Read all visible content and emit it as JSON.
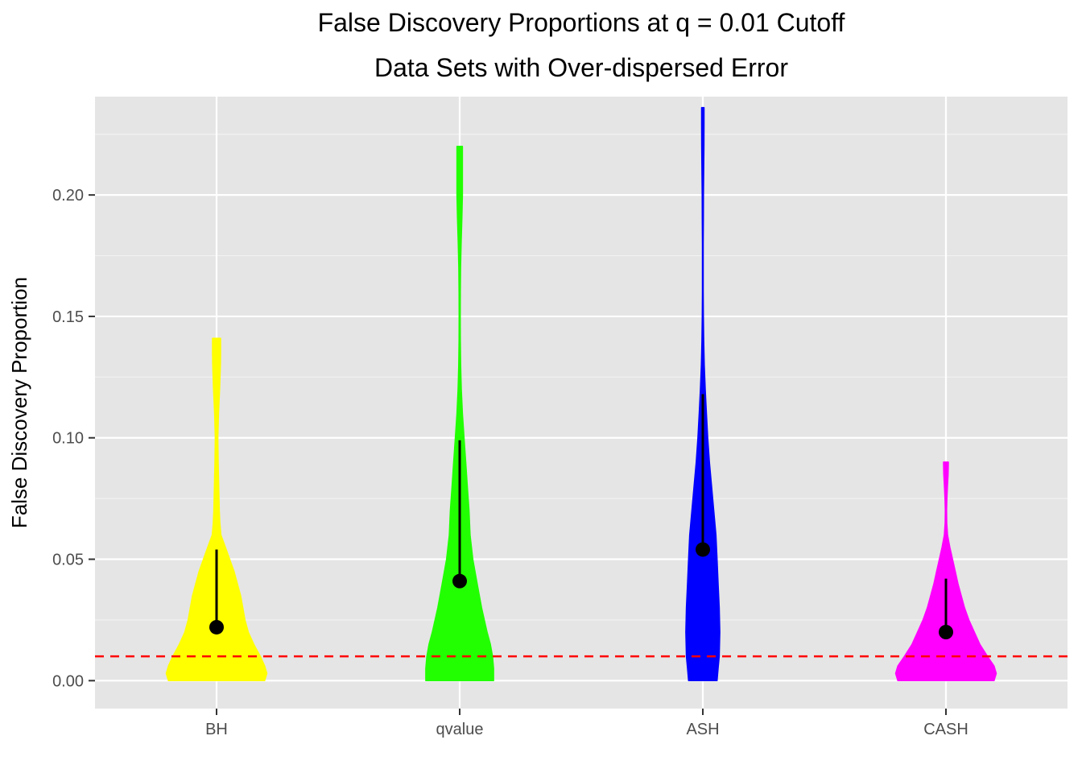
{
  "chart_data": {
    "type": "violin",
    "title": "False Discovery Proportions at q = 0.01 Cutoff",
    "subtitle": "Data Sets with Over-dispersed Error",
    "xlabel": "",
    "ylabel": "False Discovery Proportion",
    "ylim": [
      -0.0115,
      0.2405
    ],
    "yticks": [
      0.0,
      0.05,
      0.1,
      0.15,
      0.2
    ],
    "ytick_labels": [
      "0.00",
      "0.05",
      "0.10",
      "0.15",
      "0.20"
    ],
    "grid": true,
    "reference_line": {
      "y": 0.01,
      "color": "#ff0000",
      "style": "dashed"
    },
    "categories": [
      "BH",
      "qvalue",
      "ASH",
      "CASH"
    ],
    "series": [
      {
        "name": "BH",
        "color": "#ffff00",
        "min": 0.0,
        "max": 0.141,
        "point": 0.022,
        "whisker": [
          0.022,
          0.054
        ],
        "density": [
          [
            0.0,
            0.44
          ],
          [
            0.003,
            0.46
          ],
          [
            0.006,
            0.44
          ],
          [
            0.01,
            0.4
          ],
          [
            0.015,
            0.34
          ],
          [
            0.02,
            0.29
          ],
          [
            0.025,
            0.26
          ],
          [
            0.03,
            0.24
          ],
          [
            0.035,
            0.22
          ],
          [
            0.04,
            0.19
          ],
          [
            0.045,
            0.16
          ],
          [
            0.05,
            0.12
          ],
          [
            0.055,
            0.08
          ],
          [
            0.06,
            0.04
          ],
          [
            0.065,
            0.03
          ],
          [
            0.07,
            0.025
          ],
          [
            0.08,
            0.02
          ],
          [
            0.09,
            0.015
          ],
          [
            0.1,
            0.012
          ],
          [
            0.11,
            0.018
          ],
          [
            0.12,
            0.028
          ],
          [
            0.13,
            0.035
          ],
          [
            0.135,
            0.037
          ],
          [
            0.141,
            0.037
          ]
        ]
      },
      {
        "name": "qvalue",
        "color": "#22ff00",
        "min": 0.0,
        "max": 0.22,
        "point": 0.041,
        "whisker": [
          0.041,
          0.099
        ],
        "density": [
          [
            0.0,
            0.31
          ],
          [
            0.005,
            0.31
          ],
          [
            0.01,
            0.3
          ],
          [
            0.015,
            0.28
          ],
          [
            0.02,
            0.25
          ],
          [
            0.03,
            0.2
          ],
          [
            0.04,
            0.16
          ],
          [
            0.05,
            0.12
          ],
          [
            0.06,
            0.095
          ],
          [
            0.07,
            0.085
          ],
          [
            0.08,
            0.07
          ],
          [
            0.09,
            0.055
          ],
          [
            0.1,
            0.04
          ],
          [
            0.11,
            0.025
          ],
          [
            0.12,
            0.015
          ],
          [
            0.13,
            0.009
          ],
          [
            0.14,
            0.006
          ],
          [
            0.15,
            0.005
          ],
          [
            0.16,
            0.006
          ],
          [
            0.17,
            0.008
          ],
          [
            0.18,
            0.013
          ],
          [
            0.19,
            0.02
          ],
          [
            0.2,
            0.025
          ],
          [
            0.21,
            0.025
          ],
          [
            0.22,
            0.025
          ]
        ]
      },
      {
        "name": "ASH",
        "color": "#0000ff",
        "min": 0.0,
        "max": 0.236,
        "point": 0.054,
        "whisker": [
          0.054,
          0.118
        ],
        "density": [
          [
            0.0,
            0.13
          ],
          [
            0.005,
            0.14
          ],
          [
            0.01,
            0.15
          ],
          [
            0.02,
            0.155
          ],
          [
            0.03,
            0.15
          ],
          [
            0.04,
            0.14
          ],
          [
            0.05,
            0.13
          ],
          [
            0.06,
            0.12
          ],
          [
            0.07,
            0.1
          ],
          [
            0.08,
            0.08
          ],
          [
            0.09,
            0.06
          ],
          [
            0.1,
            0.045
          ],
          [
            0.11,
            0.033
          ],
          [
            0.12,
            0.022
          ],
          [
            0.13,
            0.013
          ],
          [
            0.14,
            0.008
          ],
          [
            0.15,
            0.005
          ],
          [
            0.16,
            0.004
          ],
          [
            0.17,
            0.004
          ],
          [
            0.18,
            0.004
          ],
          [
            0.19,
            0.005
          ],
          [
            0.2,
            0.006
          ],
          [
            0.21,
            0.008
          ],
          [
            0.22,
            0.01
          ],
          [
            0.23,
            0.011
          ],
          [
            0.236,
            0.011
          ]
        ]
      },
      {
        "name": "CASH",
        "color": "#ff00ff",
        "min": 0.0,
        "max": 0.09,
        "point": 0.02,
        "whisker": [
          0.02,
          0.042
        ],
        "density": [
          [
            0.0,
            0.44
          ],
          [
            0.003,
            0.46
          ],
          [
            0.006,
            0.44
          ],
          [
            0.01,
            0.38
          ],
          [
            0.015,
            0.31
          ],
          [
            0.02,
            0.26
          ],
          [
            0.025,
            0.21
          ],
          [
            0.03,
            0.17
          ],
          [
            0.035,
            0.14
          ],
          [
            0.04,
            0.11
          ],
          [
            0.045,
            0.085
          ],
          [
            0.05,
            0.06
          ],
          [
            0.055,
            0.035
          ],
          [
            0.06,
            0.015
          ],
          [
            0.065,
            0.007
          ],
          [
            0.07,
            0.006
          ],
          [
            0.075,
            0.009
          ],
          [
            0.08,
            0.014
          ],
          [
            0.085,
            0.02
          ],
          [
            0.09,
            0.022
          ]
        ]
      }
    ]
  }
}
